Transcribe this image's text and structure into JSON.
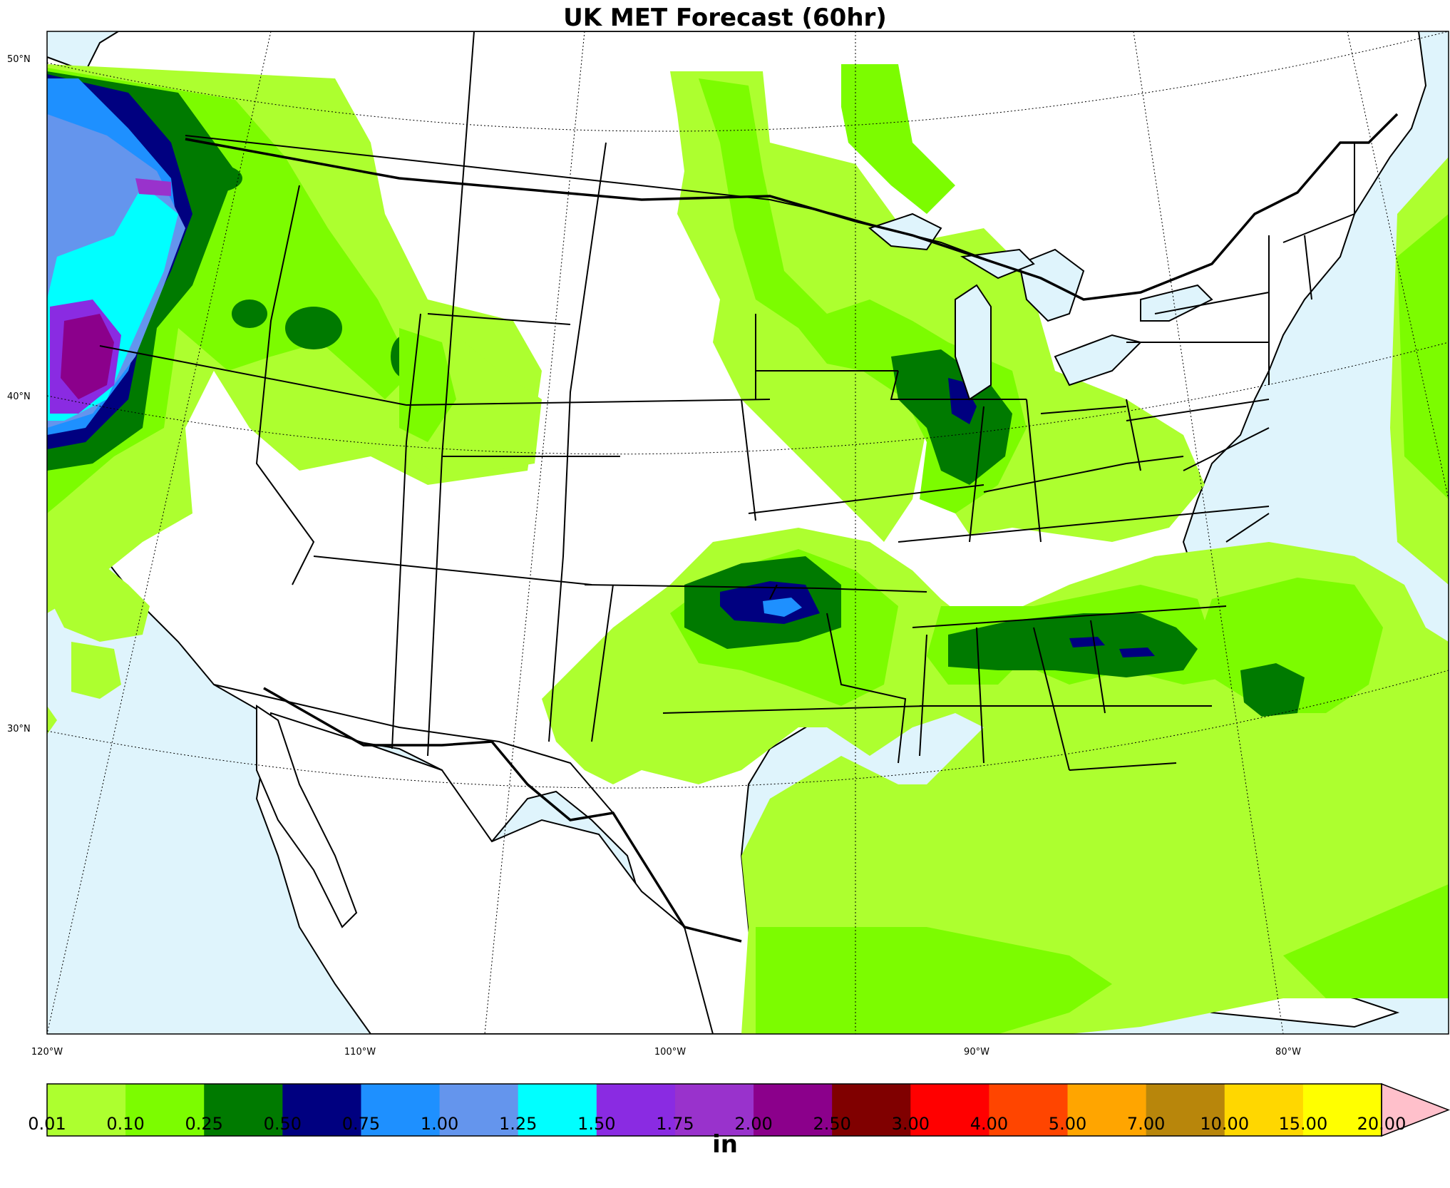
{
  "title": "UK MET Forecast (60hr)",
  "lat_labels": [
    "50°N",
    "40°N",
    "30°N"
  ],
  "lon_labels": [
    "120°W",
    "110°W",
    "100°W",
    "90°W",
    "80°W"
  ],
  "colorbar": {
    "unit": "in",
    "ticks": [
      "0.01",
      "0.10",
      "0.25",
      "0.50",
      "0.75",
      "1.00",
      "1.25",
      "1.50",
      "1.75",
      "2.00",
      "2.50",
      "3.00",
      "4.00",
      "5.00",
      "7.00",
      "10.00",
      "15.00",
      "20.00"
    ],
    "colors": [
      "#adff2f",
      "#7cfc00",
      "#007a00",
      "#000080",
      "#1e90ff",
      "#6495ed",
      "#00ffff",
      "#8a2be2",
      "#9932cc",
      "#8b008b",
      "#800000",
      "#ff0000",
      "#ff4500",
      "#ffa500",
      "#b8860b",
      "#ffd700",
      "#ffff00"
    ],
    "over_color": "#ffc0cb"
  },
  "colors": {
    "water": "#dff4fc",
    "land": "#ffffff"
  }
}
